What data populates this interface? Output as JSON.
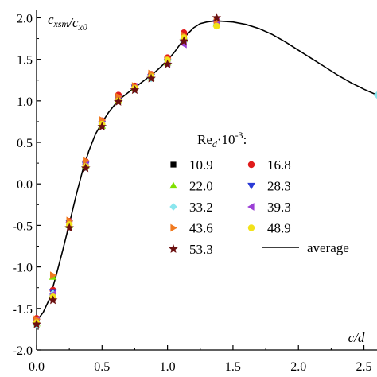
{
  "chart_data": {
    "type": "scatter",
    "title": "",
    "xlabel": "c/d",
    "ylabel": "c_xsm/c_x0",
    "xlim": [
      0,
      2.6
    ],
    "ylim": [
      -2.0,
      2.1
    ],
    "x_ticks": [
      "0.0",
      "0.5",
      "1.0",
      "1.5",
      "2.0",
      "2.5"
    ],
    "y_ticks": [
      "2.0",
      "1.5",
      "1.0",
      "0.5",
      "0.0",
      "-0.5",
      "-1.0",
      "-1.5",
      "-2.0"
    ],
    "grid": false,
    "legend_placement": "center-right",
    "legend_title": "Re_d·10^-3:",
    "series": [
      {
        "name": "10.9",
        "marker": "square",
        "color": "#000000",
        "points": [
          [
            0.0,
            -1.65
          ],
          [
            0.125,
            -1.35
          ],
          [
            0.25,
            -0.48
          ],
          [
            0.375,
            0.25
          ],
          [
            0.5,
            0.74
          ],
          [
            0.625,
            1.04
          ],
          [
            0.75,
            1.16
          ],
          [
            0.875,
            1.3
          ],
          [
            1.0,
            1.5
          ],
          [
            1.125,
            1.77
          ],
          [
            1.375,
            1.95
          ]
        ]
      },
      {
        "name": "16.8",
        "marker": "circle",
        "color": "#e01b1b",
        "points": [
          [
            0.0,
            -1.62
          ],
          [
            0.125,
            -1.28
          ],
          [
            0.25,
            -0.45
          ],
          [
            0.375,
            0.27
          ],
          [
            0.5,
            0.76
          ],
          [
            0.625,
            1.07
          ],
          [
            0.75,
            1.18
          ],
          [
            0.875,
            1.32
          ],
          [
            1.0,
            1.52
          ],
          [
            1.125,
            1.82
          ],
          [
            1.375,
            1.96
          ]
        ]
      },
      {
        "name": "22.0",
        "marker": "triangle-up",
        "color": "#7fe000",
        "points": [
          [
            0.0,
            -1.68
          ],
          [
            0.125,
            -1.12
          ],
          [
            0.25,
            -0.5
          ],
          [
            0.375,
            0.22
          ],
          [
            0.5,
            0.7
          ],
          [
            0.625,
            1.0
          ],
          [
            0.75,
            1.15
          ],
          [
            0.875,
            1.28
          ],
          [
            1.0,
            1.46
          ],
          [
            1.125,
            1.74
          ],
          [
            1.375,
            1.93
          ]
        ]
      },
      {
        "name": "28.3",
        "marker": "triangle-down",
        "color": "#2a3ad6",
        "points": [
          [
            0.0,
            -1.66
          ],
          [
            0.125,
            -1.3
          ],
          [
            0.25,
            -0.47
          ],
          [
            0.375,
            0.23
          ],
          [
            0.5,
            0.72
          ],
          [
            0.625,
            1.02
          ],
          [
            0.75,
            1.16
          ],
          [
            0.875,
            1.29
          ],
          [
            1.0,
            1.47
          ],
          [
            1.125,
            1.7
          ],
          [
            1.375,
            1.94
          ]
        ]
      },
      {
        "name": "33.2",
        "marker": "diamond",
        "color": "#8ae6ee",
        "points": [
          [
            0.0,
            -1.7
          ],
          [
            0.125,
            -1.32
          ],
          [
            0.25,
            -0.52
          ],
          [
            0.375,
            0.2
          ],
          [
            0.5,
            0.71
          ],
          [
            0.625,
            1.01
          ],
          [
            0.75,
            1.14
          ],
          [
            0.875,
            1.27
          ],
          [
            1.0,
            1.48
          ],
          [
            1.125,
            1.75
          ],
          [
            1.375,
            1.92
          ],
          [
            2.6,
            1.07
          ]
        ]
      },
      {
        "name": "39.3",
        "marker": "triangle-left",
        "color": "#9b3fd6",
        "points": [
          [
            0.0,
            -1.64
          ],
          [
            0.125,
            -1.33
          ],
          [
            0.25,
            -0.46
          ],
          [
            0.375,
            0.24
          ],
          [
            0.5,
            0.73
          ],
          [
            0.625,
            1.03
          ],
          [
            0.75,
            1.17
          ],
          [
            0.875,
            1.31
          ],
          [
            1.0,
            1.45
          ],
          [
            1.125,
            1.68
          ],
          [
            1.375,
            1.95
          ]
        ]
      },
      {
        "name": "43.6",
        "marker": "triangle-right",
        "color": "#f07a20",
        "points": [
          [
            0.0,
            -1.63
          ],
          [
            0.125,
            -1.1
          ],
          [
            0.25,
            -0.44
          ],
          [
            0.375,
            0.28
          ],
          [
            0.5,
            0.77
          ],
          [
            0.625,
            1.05
          ],
          [
            0.75,
            1.18
          ],
          [
            0.875,
            1.33
          ],
          [
            1.0,
            1.51
          ],
          [
            1.125,
            1.79
          ],
          [
            1.375,
            1.97
          ]
        ]
      },
      {
        "name": "48.9",
        "marker": "circle",
        "color": "#f2e21a",
        "points": [
          [
            0.0,
            -1.67
          ],
          [
            0.125,
            -1.36
          ],
          [
            0.25,
            -0.49
          ],
          [
            0.375,
            0.21
          ],
          [
            0.5,
            0.72
          ],
          [
            0.625,
            1.0
          ],
          [
            0.75,
            1.15
          ],
          [
            0.875,
            1.29
          ],
          [
            1.0,
            1.49
          ],
          [
            1.125,
            1.76
          ],
          [
            1.375,
            1.9
          ]
        ]
      },
      {
        "name": "53.3",
        "marker": "star",
        "color": "#6b1010",
        "points": [
          [
            0.0,
            -1.69
          ],
          [
            0.125,
            -1.4
          ],
          [
            0.25,
            -0.53
          ],
          [
            0.375,
            0.19
          ],
          [
            0.5,
            0.69
          ],
          [
            0.625,
            0.99
          ],
          [
            0.75,
            1.13
          ],
          [
            0.875,
            1.27
          ],
          [
            1.0,
            1.44
          ],
          [
            1.125,
            1.72
          ],
          [
            1.375,
            2.0
          ]
        ]
      }
    ],
    "average": {
      "name": "average",
      "color": "#000000",
      "x": [
        0.0,
        0.05,
        0.1,
        0.15,
        0.2,
        0.25,
        0.3,
        0.35,
        0.4,
        0.45,
        0.5,
        0.55,
        0.6,
        0.65,
        0.7,
        0.75,
        0.8,
        0.85,
        0.9,
        0.95,
        1.0,
        1.05,
        1.1,
        1.15,
        1.2,
        1.25,
        1.3,
        1.35,
        1.4,
        1.5,
        1.6,
        1.7,
        1.8,
        1.9,
        2.0,
        2.1,
        2.2,
        2.3,
        2.4,
        2.5,
        2.6
      ],
      "y": [
        -1.65,
        -1.55,
        -1.38,
        -1.1,
        -0.8,
        -0.48,
        -0.15,
        0.15,
        0.4,
        0.6,
        0.74,
        0.86,
        0.96,
        1.04,
        1.1,
        1.16,
        1.22,
        1.28,
        1.34,
        1.41,
        1.49,
        1.58,
        1.69,
        1.8,
        1.88,
        1.93,
        1.95,
        1.96,
        1.96,
        1.95,
        1.92,
        1.87,
        1.8,
        1.71,
        1.61,
        1.51,
        1.41,
        1.31,
        1.22,
        1.14,
        1.07
      ]
    }
  }
}
